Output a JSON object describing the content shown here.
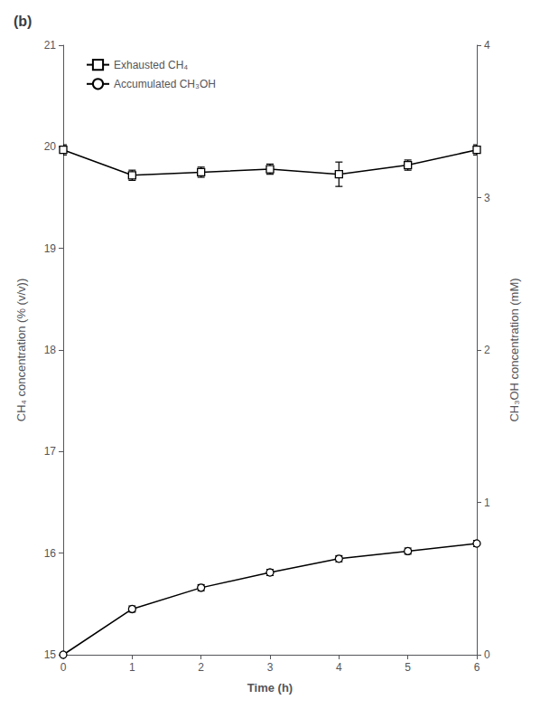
{
  "chart_data": {
    "type": "line",
    "title": "(b)",
    "x": [
      0,
      1,
      2,
      3,
      4,
      5,
      6
    ],
    "xlim": [
      0,
      6
    ],
    "xticks": [
      0,
      1,
      2,
      3,
      4,
      5,
      6
    ],
    "xlabel": "Time (h)",
    "ylabel": "CH₄ concentration (% (v/v))",
    "ylim": [
      15,
      21
    ],
    "yticks": [
      15,
      16,
      17,
      18,
      19,
      20,
      21
    ],
    "y2label": "CH₃OH concentration (mM)",
    "y2lim": [
      0,
      4
    ],
    "y2ticks": [
      0,
      1,
      2,
      3,
      4
    ],
    "grid": false,
    "legend": "upper left",
    "series": [
      {
        "name": "Exhausted CH₄",
        "color": "#000000",
        "marker": "square",
        "values": [
          19.97,
          19.72,
          19.75,
          19.78,
          19.73,
          19.82,
          19.97
        ],
        "errors": [
          0.05,
          0.05,
          0.05,
          0.05,
          0.12,
          0.05,
          0.05
        ]
      },
      {
        "name": "Accumulated CH₃OH",
        "color": "#000000",
        "marker": "circle",
        "axis": "y2",
        "values": [
          0.0,
          0.3,
          0.44,
          0.54,
          0.63,
          0.68,
          0.73
        ],
        "errors": [
          0.0,
          0.02,
          0.02,
          0.02,
          0.02,
          0.02,
          0.02
        ]
      }
    ]
  }
}
